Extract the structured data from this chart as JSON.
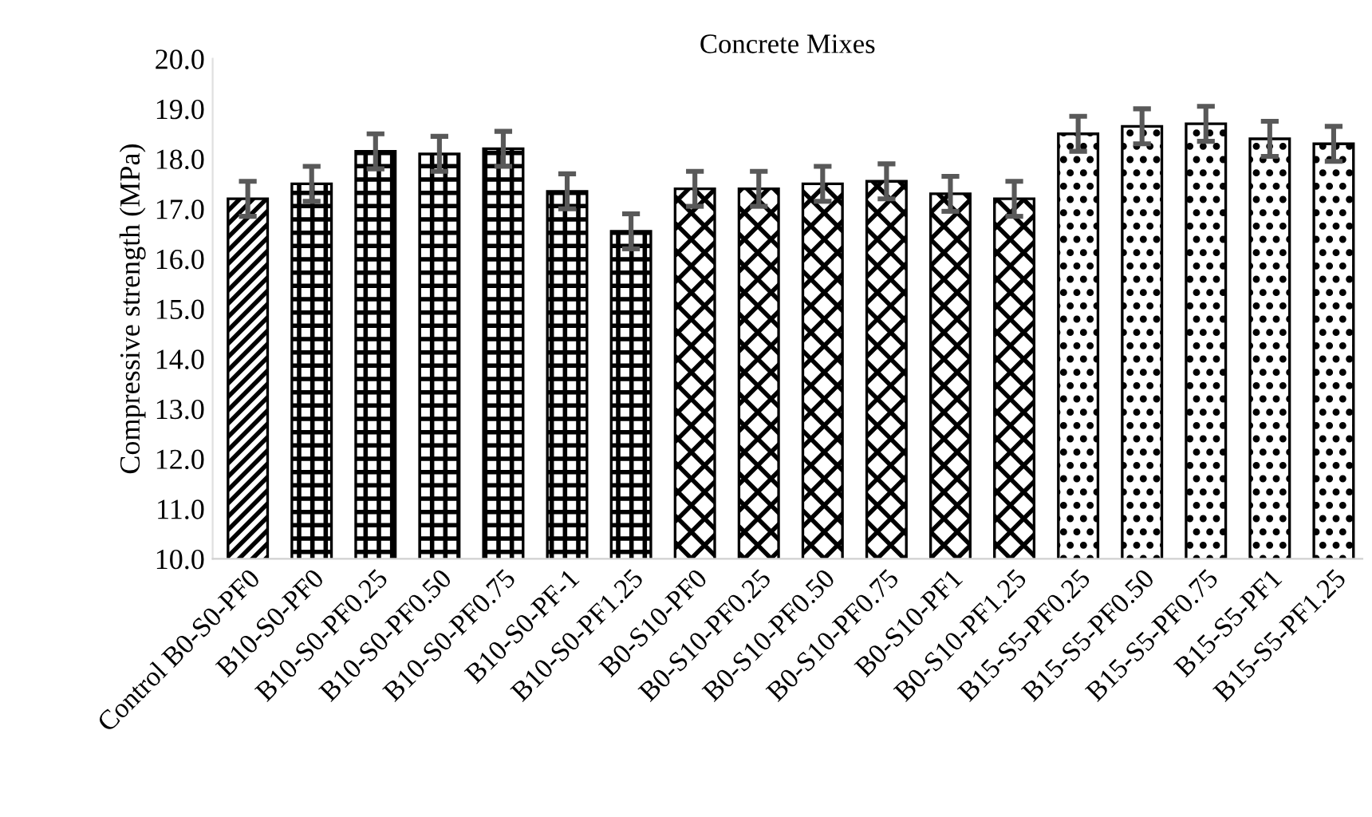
{
  "chart_data": {
    "type": "bar",
    "title": "Concrete Mixes",
    "ylabel": "Compressive strength (MPa)",
    "categories": [
      "Control B0-S0-PF0",
      "B10-S0-PF0",
      "B10-S0-PF0.25",
      "B10-S0-PF0.50",
      "B10-S0-PF0.75",
      "B10-S0-PF-1",
      "B10-S0-PF1.25",
      "B0-S10-PF0",
      "B0-S10-PF0.25",
      "B0-S10-PF0.50",
      "B0-S10-PF0.75",
      "B0-S10-PF1",
      "B0-S10-PF1.25",
      "B15-S5-PF0.25",
      "B15-S5-PF0.50",
      "B15-S5-PF0.75",
      "B15-S5-PF1",
      "B15-S5-PF1.25"
    ],
    "values": [
      17.2,
      17.5,
      18.15,
      18.1,
      18.2,
      17.35,
      16.55,
      17.4,
      17.4,
      17.5,
      17.55,
      17.3,
      17.2,
      18.5,
      18.65,
      18.7,
      18.4,
      18.3
    ],
    "errors": [
      0.35,
      0.35,
      0.35,
      0.35,
      0.35,
      0.35,
      0.35,
      0.35,
      0.35,
      0.35,
      0.35,
      0.35,
      0.35,
      0.35,
      0.35,
      0.35,
      0.35,
      0.35
    ],
    "colors": [
      "#000000",
      "#000000",
      "#000000",
      "#000000",
      "#000000",
      "#000000",
      "#000000",
      "#000000",
      "#000000",
      "#000000",
      "#000000",
      "#000000",
      "#000000",
      "#000000",
      "#000000",
      "#000000",
      "#000000",
      "#000000"
    ],
    "ylim": [
      10,
      20
    ],
    "yticks": [
      {
        "value": 10,
        "label": "10.0"
      },
      {
        "value": 11,
        "label": "11.0"
      },
      {
        "value": 12,
        "label": "12.0"
      },
      {
        "value": 13,
        "label": "13.0"
      },
      {
        "value": 14,
        "label": "14.0"
      },
      {
        "value": 15,
        "label": "15.0"
      },
      {
        "value": 16,
        "label": "16.0"
      },
      {
        "value": 17,
        "label": "17.0"
      },
      {
        "value": 18,
        "label": "18.0"
      },
      {
        "value": 19,
        "label": "19.0"
      },
      {
        "value": 20,
        "label": "20.0"
      }
    ],
    "grid": false
  }
}
